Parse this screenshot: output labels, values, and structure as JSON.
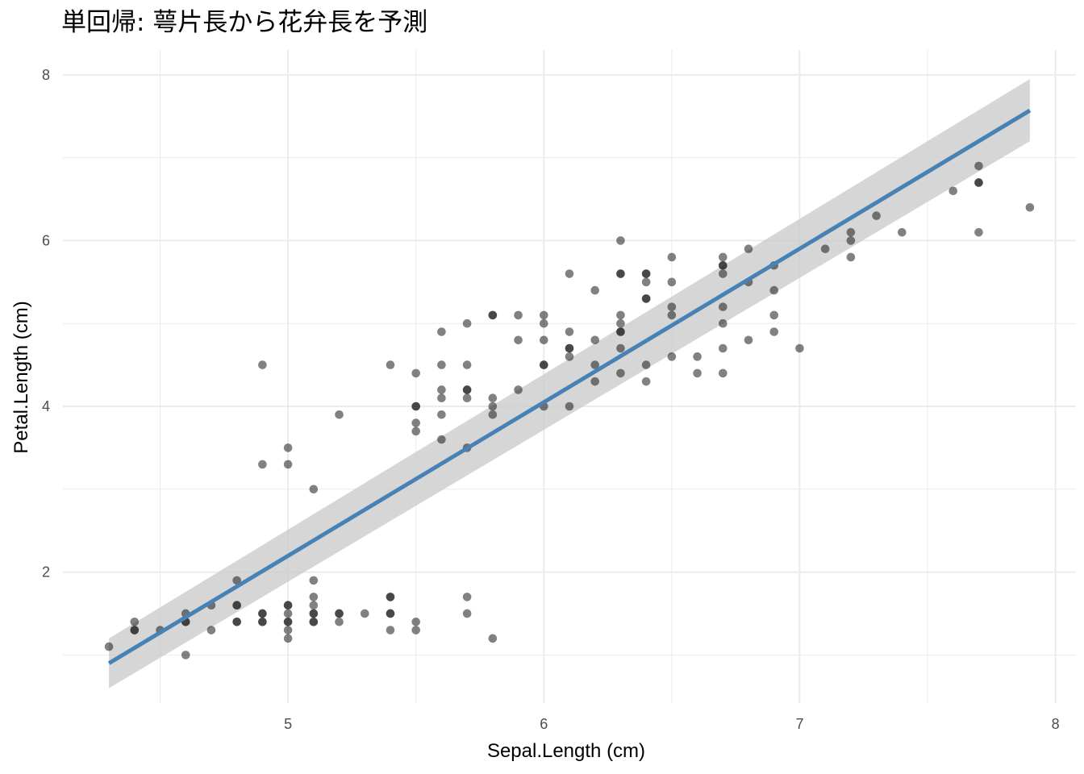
{
  "chart_data": {
    "type": "scatter",
    "title": "単回帰: 萼片長から花弁長を予測",
    "xlabel": "Sepal.Length (cm)",
    "ylabel": "Petal.Length (cm)",
    "xlim": [
      4.12,
      8.08
    ],
    "ylim": [
      0.42,
      8.3
    ],
    "xticks": [
      5,
      6,
      7,
      8
    ],
    "xtick_labels": [
      "5",
      "6",
      "7",
      "8"
    ],
    "yticks": [
      2,
      4,
      6,
      8
    ],
    "ytick_labels": [
      "2",
      "4",
      "6",
      "8"
    ],
    "grid": true,
    "colors": {
      "points": "#1a1a1a",
      "line": "#4682b4",
      "band": "#cccccc",
      "grid": "#ebebeb"
    },
    "regression": {
      "x_range": [
        4.3,
        7.9
      ],
      "y_start": 0.9,
      "y_end": 7.57,
      "ci_lower": [
        0.6,
        7.2
      ],
      "ci_upper": [
        1.2,
        7.95
      ]
    },
    "points": [
      [
        4.3,
        1.1
      ],
      [
        4.4,
        1.4
      ],
      [
        4.4,
        1.3
      ],
      [
        4.4,
        1.3
      ],
      [
        4.5,
        1.3
      ],
      [
        4.6,
        1.0
      ],
      [
        4.6,
        1.5
      ],
      [
        4.6,
        1.4
      ],
      [
        4.6,
        1.4
      ],
      [
        4.7,
        1.6
      ],
      [
        4.7,
        1.3
      ],
      [
        4.8,
        1.9
      ],
      [
        4.8,
        1.6
      ],
      [
        4.8,
        1.6
      ],
      [
        4.8,
        1.4
      ],
      [
        4.8,
        1.4
      ],
      [
        4.9,
        4.5
      ],
      [
        4.9,
        3.3
      ],
      [
        4.9,
        1.5
      ],
      [
        4.9,
        1.5
      ],
      [
        4.9,
        1.4
      ],
      [
        4.9,
        1.4
      ],
      [
        5.0,
        3.5
      ],
      [
        5.0,
        3.3
      ],
      [
        5.0,
        1.6
      ],
      [
        5.0,
        1.6
      ],
      [
        5.0,
        1.5
      ],
      [
        5.0,
        1.4
      ],
      [
        5.0,
        1.4
      ],
      [
        5.0,
        1.3
      ],
      [
        5.0,
        1.2
      ],
      [
        5.1,
        3.0
      ],
      [
        5.1,
        1.9
      ],
      [
        5.1,
        1.7
      ],
      [
        5.1,
        1.6
      ],
      [
        5.1,
        1.5
      ],
      [
        5.1,
        1.5
      ],
      [
        5.1,
        1.4
      ],
      [
        5.1,
        1.4
      ],
      [
        5.2,
        3.9
      ],
      [
        5.2,
        1.5
      ],
      [
        5.2,
        1.5
      ],
      [
        5.2,
        1.4
      ],
      [
        5.3,
        1.5
      ],
      [
        5.4,
        4.5
      ],
      [
        5.4,
        1.7
      ],
      [
        5.4,
        1.7
      ],
      [
        5.4,
        1.5
      ],
      [
        5.4,
        1.5
      ],
      [
        5.4,
        1.3
      ],
      [
        5.5,
        4.4
      ],
      [
        5.5,
        4.0
      ],
      [
        5.5,
        4.0
      ],
      [
        5.5,
        3.8
      ],
      [
        5.5,
        3.7
      ],
      [
        5.5,
        1.4
      ],
      [
        5.5,
        1.3
      ],
      [
        5.6,
        4.9
      ],
      [
        5.6,
        4.5
      ],
      [
        5.6,
        4.2
      ],
      [
        5.6,
        4.1
      ],
      [
        5.6,
        3.9
      ],
      [
        5.6,
        3.6
      ],
      [
        5.7,
        5.0
      ],
      [
        5.7,
        4.5
      ],
      [
        5.7,
        4.2
      ],
      [
        5.7,
        4.2
      ],
      [
        5.7,
        4.1
      ],
      [
        5.7,
        3.5
      ],
      [
        5.7,
        1.7
      ],
      [
        5.7,
        1.5
      ],
      [
        5.8,
        5.1
      ],
      [
        5.8,
        5.1
      ],
      [
        5.8,
        4.1
      ],
      [
        5.8,
        4.0
      ],
      [
        5.8,
        3.9
      ],
      [
        5.8,
        1.2
      ],
      [
        5.9,
        5.1
      ],
      [
        5.9,
        4.8
      ],
      [
        5.9,
        4.2
      ],
      [
        6.0,
        5.1
      ],
      [
        6.0,
        5.0
      ],
      [
        6.0,
        4.8
      ],
      [
        6.0,
        4.5
      ],
      [
        6.0,
        4.5
      ],
      [
        6.0,
        4.0
      ],
      [
        6.1,
        5.6
      ],
      [
        6.1,
        4.9
      ],
      [
        6.1,
        4.7
      ],
      [
        6.1,
        4.7
      ],
      [
        6.1,
        4.6
      ],
      [
        6.1,
        4.0
      ],
      [
        6.2,
        5.4
      ],
      [
        6.2,
        4.8
      ],
      [
        6.2,
        4.5
      ],
      [
        6.2,
        4.3
      ],
      [
        6.3,
        6.0
      ],
      [
        6.3,
        5.6
      ],
      [
        6.3,
        5.6
      ],
      [
        6.3,
        5.1
      ],
      [
        6.3,
        5.0
      ],
      [
        6.3,
        4.9
      ],
      [
        6.3,
        4.9
      ],
      [
        6.3,
        4.7
      ],
      [
        6.3,
        4.4
      ],
      [
        6.4,
        5.6
      ],
      [
        6.4,
        5.6
      ],
      [
        6.4,
        5.5
      ],
      [
        6.4,
        5.3
      ],
      [
        6.4,
        5.3
      ],
      [
        6.4,
        4.5
      ],
      [
        6.4,
        4.3
      ],
      [
        6.5,
        5.8
      ],
      [
        6.5,
        5.5
      ],
      [
        6.5,
        5.2
      ],
      [
        6.5,
        5.1
      ],
      [
        6.5,
        4.6
      ],
      [
        6.6,
        4.6
      ],
      [
        6.6,
        4.4
      ],
      [
        6.7,
        5.8
      ],
      [
        6.7,
        5.7
      ],
      [
        6.7,
        5.7
      ],
      [
        6.7,
        5.6
      ],
      [
        6.7,
        5.2
      ],
      [
        6.7,
        5.0
      ],
      [
        6.7,
        4.7
      ],
      [
        6.7,
        4.4
      ],
      [
        6.8,
        5.9
      ],
      [
        6.8,
        5.5
      ],
      [
        6.8,
        4.8
      ],
      [
        6.9,
        5.7
      ],
      [
        6.9,
        5.4
      ],
      [
        6.9,
        5.1
      ],
      [
        6.9,
        4.9
      ],
      [
        7.0,
        4.7
      ],
      [
        7.1,
        5.9
      ],
      [
        7.2,
        6.1
      ],
      [
        7.2,
        6.0
      ],
      [
        7.2,
        5.8
      ],
      [
        7.3,
        6.3
      ],
      [
        7.4,
        6.1
      ],
      [
        7.6,
        6.6
      ],
      [
        7.7,
        6.9
      ],
      [
        7.7,
        6.7
      ],
      [
        7.7,
        6.7
      ],
      [
        7.7,
        6.1
      ],
      [
        7.9,
        6.4
      ]
    ]
  }
}
